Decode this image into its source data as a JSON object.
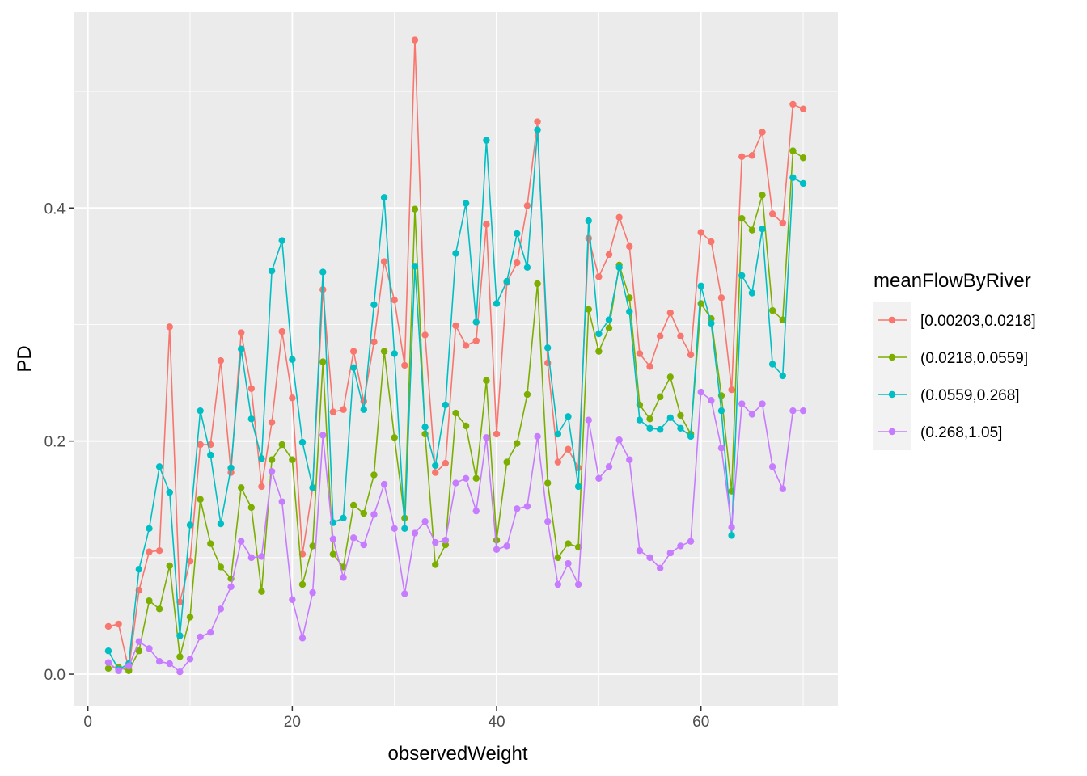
{
  "chart_data": {
    "type": "line",
    "xlabel": "observedWeight",
    "ylabel": "PD",
    "xlim": [
      -1.4,
      73.4
    ],
    "ylim": [
      -0.027,
      0.568
    ],
    "xticks": [
      0,
      20,
      40,
      60
    ],
    "yticks": [
      0.0,
      0.2,
      0.4
    ],
    "xtick_labels": [
      "0",
      "20",
      "40",
      "60"
    ],
    "ytick_labels": [
      "0.0",
      "0.2",
      "0.4"
    ],
    "grid": true,
    "legend": {
      "title": "meanFlowByRiver",
      "position": "right"
    },
    "x": [
      2,
      3,
      4,
      5,
      6,
      7,
      8,
      9,
      10,
      11,
      12,
      13,
      14,
      15,
      16,
      17,
      18,
      19,
      20,
      21,
      22,
      23,
      24,
      25,
      26,
      27,
      28,
      29,
      30,
      31,
      32,
      33,
      34,
      35,
      36,
      37,
      38,
      39,
      40,
      41,
      42,
      43,
      44,
      45,
      46,
      47,
      48,
      49,
      50,
      51,
      52,
      53,
      54,
      55,
      56,
      57,
      58,
      59,
      60,
      61,
      62,
      63,
      64,
      65,
      66,
      67,
      68,
      69,
      70
    ],
    "series": [
      {
        "name": "[0.00203,0.0218]",
        "color": "#F8766D",
        "values": [
          0.041,
          0.043,
          0.004,
          0.072,
          0.105,
          0.106,
          0.298,
          0.062,
          0.097,
          0.197,
          0.197,
          0.269,
          0.173,
          0.293,
          0.245,
          0.161,
          0.216,
          0.294,
          0.237,
          0.103,
          0.16,
          0.33,
          0.225,
          0.227,
          0.277,
          0.234,
          0.285,
          0.354,
          0.321,
          0.265,
          0.544,
          0.291,
          0.173,
          0.181,
          0.299,
          0.282,
          0.286,
          0.386,
          0.206,
          0.336,
          0.353,
          0.402,
          0.474,
          0.267,
          0.182,
          0.193,
          0.177,
          0.374,
          0.341,
          0.36,
          0.392,
          0.367,
          0.275,
          0.264,
          0.29,
          0.31,
          0.29,
          0.274,
          0.379,
          0.371,
          0.323,
          0.244,
          0.444,
          0.445,
          0.465,
          0.395,
          0.387,
          0.489,
          0.485
        ]
      },
      {
        "name": "(0.0218,0.0559]",
        "color": "#7CAE00",
        "values": [
          0.005,
          0.006,
          0.003,
          0.02,
          0.063,
          0.056,
          0.093,
          0.015,
          0.049,
          0.15,
          0.112,
          0.092,
          0.082,
          0.16,
          0.143,
          0.071,
          0.184,
          0.197,
          0.184,
          0.077,
          0.11,
          0.268,
          0.103,
          0.092,
          0.145,
          0.138,
          0.171,
          0.277,
          0.203,
          0.134,
          0.399,
          0.206,
          0.094,
          0.111,
          0.224,
          0.213,
          0.168,
          0.252,
          0.115,
          0.182,
          0.198,
          0.24,
          0.335,
          0.164,
          0.1,
          0.112,
          0.109,
          0.313,
          0.277,
          0.297,
          0.351,
          0.323,
          0.231,
          0.219,
          0.238,
          0.255,
          0.222,
          0.206,
          0.318,
          0.305,
          0.239,
          0.157,
          0.391,
          0.381,
          0.411,
          0.312,
          0.304,
          0.449,
          0.443
        ]
      },
      {
        "name": "(0.0559,0.268]",
        "color": "#00BFC4",
        "values": [
          0.02,
          0.004,
          0.009,
          0.09,
          0.125,
          0.178,
          0.156,
          0.033,
          0.128,
          0.226,
          0.188,
          0.129,
          0.177,
          0.279,
          0.219,
          0.185,
          0.346,
          0.372,
          0.27,
          0.199,
          0.16,
          0.345,
          0.13,
          0.134,
          0.263,
          0.227,
          0.317,
          0.409,
          0.275,
          0.125,
          0.35,
          0.212,
          0.179,
          0.231,
          0.361,
          0.404,
          0.302,
          0.458,
          0.318,
          0.337,
          0.378,
          0.349,
          0.467,
          0.28,
          0.206,
          0.221,
          0.161,
          0.389,
          0.292,
          0.304,
          0.349,
          0.311,
          0.218,
          0.211,
          0.21,
          0.22,
          0.211,
          0.204,
          0.333,
          0.301,
          0.226,
          0.119,
          0.342,
          0.327,
          0.382,
          0.266,
          0.256,
          0.426,
          0.421
        ]
      },
      {
        "name": "(0.268,1.05]",
        "color": "#C77CFF",
        "values": [
          0.01,
          0.003,
          0.007,
          0.028,
          0.022,
          0.011,
          0.009,
          0.002,
          0.013,
          0.032,
          0.036,
          0.056,
          0.075,
          0.114,
          0.1,
          0.101,
          0.174,
          0.148,
          0.064,
          0.031,
          0.07,
          0.205,
          0.116,
          0.083,
          0.117,
          0.111,
          0.137,
          0.163,
          0.125,
          0.069,
          0.121,
          0.131,
          0.113,
          0.115,
          0.164,
          0.168,
          0.14,
          0.203,
          0.107,
          0.11,
          0.142,
          0.144,
          0.204,
          0.131,
          0.077,
          0.095,
          0.077,
          0.218,
          0.168,
          0.178,
          0.201,
          0.184,
          0.106,
          0.1,
          0.091,
          0.104,
          0.11,
          0.114,
          0.242,
          0.235,
          0.194,
          0.126,
          0.232,
          0.223,
          0.232,
          0.178,
          0.159,
          0.226,
          0.226
        ]
      }
    ]
  }
}
